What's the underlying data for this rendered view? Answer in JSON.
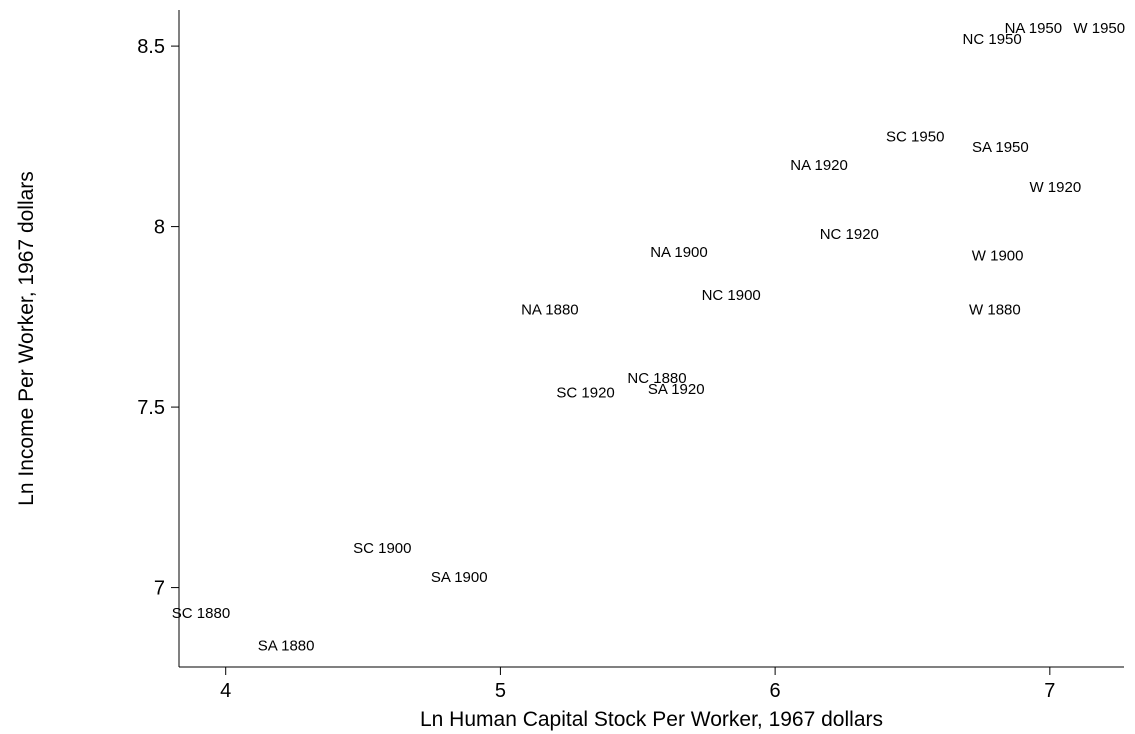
{
  "chart_data": {
    "type": "scatter",
    "title": "",
    "xlabel": "Ln Human Capital Stock Per Worker, 1967 dollars",
    "ylabel": "Ln Income Per Worker, 1967 dollars",
    "xlim": [
      3.83,
      7.27
    ],
    "ylim": [
      6.78,
      8.6
    ],
    "xticks": [
      4,
      5,
      6,
      7
    ],
    "xtick_labels": [
      "4",
      "5",
      "6",
      "7"
    ],
    "yticks": [
      7,
      7.5,
      8,
      8.5
    ],
    "ytick_labels": [
      "7",
      "7.5",
      "8",
      "8.5"
    ],
    "grid": false,
    "marker": "label-only",
    "points": [
      {
        "label": "SC 1880",
        "x": 3.91,
        "y": 6.93
      },
      {
        "label": "SA 1880",
        "x": 4.22,
        "y": 6.84
      },
      {
        "label": "SC 1900",
        "x": 4.57,
        "y": 7.11
      },
      {
        "label": "SA 1900",
        "x": 4.85,
        "y": 7.03
      },
      {
        "label": "NA 1880",
        "x": 5.18,
        "y": 7.77
      },
      {
        "label": "SC 1920",
        "x": 5.31,
        "y": 7.54
      },
      {
        "label": "NC 1880",
        "x": 5.57,
        "y": 7.58
      },
      {
        "label": "SA 1920",
        "x": 5.64,
        "y": 7.55
      },
      {
        "label": "NA 1900",
        "x": 5.65,
        "y": 7.93
      },
      {
        "label": "NC 1900",
        "x": 5.84,
        "y": 7.81
      },
      {
        "label": "NA 1920",
        "x": 6.16,
        "y": 8.17
      },
      {
        "label": "NC 1920",
        "x": 6.27,
        "y": 7.98
      },
      {
        "label": "SC 1950",
        "x": 6.51,
        "y": 8.25
      },
      {
        "label": "NC 1950",
        "x": 6.79,
        "y": 8.52
      },
      {
        "label": "W 1880",
        "x": 6.8,
        "y": 7.77
      },
      {
        "label": "SA 1950",
        "x": 6.82,
        "y": 8.22
      },
      {
        "label": "W 1900",
        "x": 6.81,
        "y": 7.92
      },
      {
        "label": "NA 1950",
        "x": 6.94,
        "y": 8.55
      },
      {
        "label": "W 1920",
        "x": 7.02,
        "y": 8.11
      },
      {
        "label": "W 1950",
        "x": 7.18,
        "y": 8.55
      }
    ]
  }
}
